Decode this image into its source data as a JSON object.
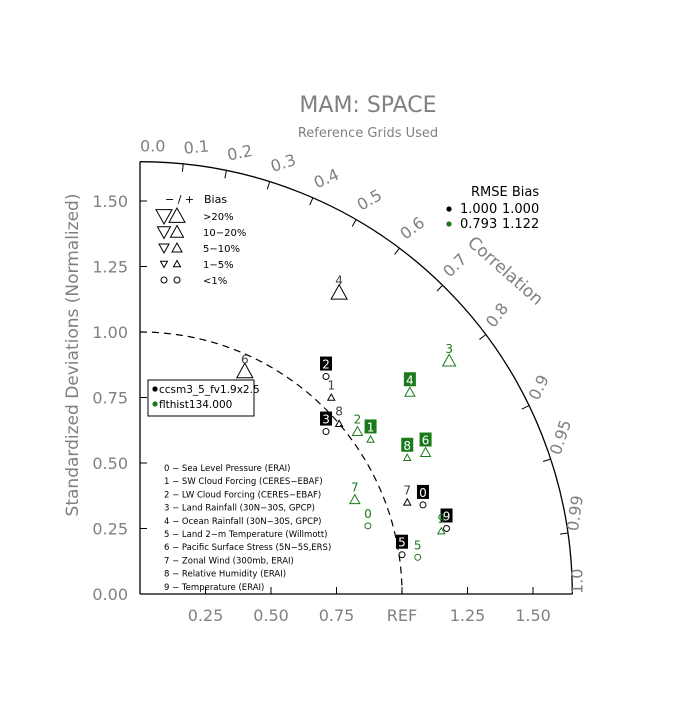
{
  "chart_data": {
    "type": "taylor-diagram",
    "title": "MAM: SPACE",
    "subtitle": "Reference Grids Used",
    "ylabel": "Standardized Deviations (Normalized)",
    "arc_label": "Correlation",
    "ref_label": "REF",
    "x_ticks": [
      "0.25",
      "0.50",
      "0.75",
      "1.25",
      "1.50"
    ],
    "x_tick_values": [
      0.25,
      0.5,
      0.75,
      1.25,
      1.5
    ],
    "y_ticks": [
      "0.00",
      "0.25",
      "0.50",
      "0.75",
      "1.00",
      "1.25",
      "1.50"
    ],
    "y_tick_values": [
      0.0,
      0.25,
      0.5,
      0.75,
      1.0,
      1.25,
      1.5
    ],
    "radial_max": 1.65,
    "reference_std": 1.0,
    "correlation_ticks": [
      "0.0",
      "0.1",
      "0.2",
      "0.3",
      "0.4",
      "0.5",
      "0.6",
      "0.7",
      "0.8",
      "0.9",
      "0.95",
      "0.99",
      "1.0"
    ],
    "correlation_tick_values": [
      0.0,
      0.1,
      0.2,
      0.3,
      0.4,
      0.5,
      0.6,
      0.7,
      0.8,
      0.9,
      0.95,
      0.99,
      1.0
    ],
    "bias_legend": {
      "header_sign": "− / +",
      "header_label": "Bias",
      "rows": [
        ">20%",
        "10−20%",
        "5−10%",
        "1−5%",
        "<1%"
      ]
    },
    "rmse_table": {
      "header": "RMSE  Bias",
      "rows": [
        {
          "rmse": "1.000",
          "bias": "1.000",
          "color": "#000000"
        },
        {
          "rmse": "0.793",
          "bias": "1.122",
          "color": "#1a7a1a"
        }
      ]
    },
    "series": [
      {
        "name": "ccsm3_5_fv1.9x2.5",
        "color": "#000000",
        "points": [
          {
            "id": "0",
            "x": 1.08,
            "y": 0.34,
            "bias": "<1%",
            "sign": "-"
          },
          {
            "id": "1",
            "x": 0.73,
            "y": 0.75,
            "bias": "1-5%",
            "sign": "+"
          },
          {
            "id": "2",
            "x": 0.71,
            "y": 0.83,
            "bias": "<1%",
            "sign": "-"
          },
          {
            "id": "3",
            "x": 0.71,
            "y": 0.62,
            "bias": "<1%",
            "sign": "-"
          },
          {
            "id": "4",
            "x": 0.76,
            "y": 1.15,
            "bias": ">20%",
            "sign": "+"
          },
          {
            "id": "5",
            "x": 1.0,
            "y": 0.15,
            "bias": "<1%",
            "sign": "-"
          },
          {
            "id": "6",
            "x": 0.4,
            "y": 0.85,
            "bias": ">20%",
            "sign": "+"
          },
          {
            "id": "7",
            "x": 1.02,
            "y": 0.35,
            "bias": "1-5%",
            "sign": "+"
          },
          {
            "id": "8",
            "x": 0.76,
            "y": 0.65,
            "bias": "1-5%",
            "sign": "+"
          },
          {
            "id": "9",
            "x": 1.17,
            "y": 0.25,
            "bias": "<1%",
            "sign": "-"
          }
        ]
      },
      {
        "name": "flthist134.000",
        "color": "#1a7a1a",
        "points": [
          {
            "id": "0",
            "x": 0.87,
            "y": 0.26,
            "bias": "<1%",
            "sign": "-"
          },
          {
            "id": "1",
            "x": 0.88,
            "y": 0.59,
            "bias": "1-5%",
            "sign": "+"
          },
          {
            "id": "2",
            "x": 0.83,
            "y": 0.62,
            "bias": "5-10%",
            "sign": "+"
          },
          {
            "id": "3",
            "x": 1.18,
            "y": 0.89,
            "bias": "10-20%",
            "sign": "+"
          },
          {
            "id": "4",
            "x": 1.03,
            "y": 0.77,
            "bias": "5-10%",
            "sign": "+"
          },
          {
            "id": "5",
            "x": 1.06,
            "y": 0.14,
            "bias": "<1%",
            "sign": "-"
          },
          {
            "id": "6",
            "x": 1.09,
            "y": 0.54,
            "bias": "5-10%",
            "sign": "+"
          },
          {
            "id": "7",
            "x": 0.82,
            "y": 0.36,
            "bias": "5-10%",
            "sign": "+"
          },
          {
            "id": "8",
            "x": 1.02,
            "y": 0.52,
            "bias": "1-5%",
            "sign": "+"
          },
          {
            "id": "9",
            "x": 1.15,
            "y": 0.24,
            "bias": "1-5%",
            "sign": "+"
          }
        ]
      }
    ],
    "variable_legend": [
      "0 − Sea Level Pressure (ERAI)",
      "1 − SW Cloud Forcing (CERES−EBAF)",
      "2 − LW Cloud Forcing (CERES−EBAF)",
      "3 − Land Rainfall (30N−30S, GPCP)",
      "4 − Ocean Rainfall (30N−30S, GPCP)",
      "5 − Land 2−m Temperature (Willmott)",
      "6 − Pacific Surface Stress (5N−5S,ERS)",
      "7 − Zonal Wind (300mb, ERAI)",
      "8 − Relative Humidity (ERAI)",
      "9 − Temperature (ERAI)"
    ],
    "grid": false
  }
}
